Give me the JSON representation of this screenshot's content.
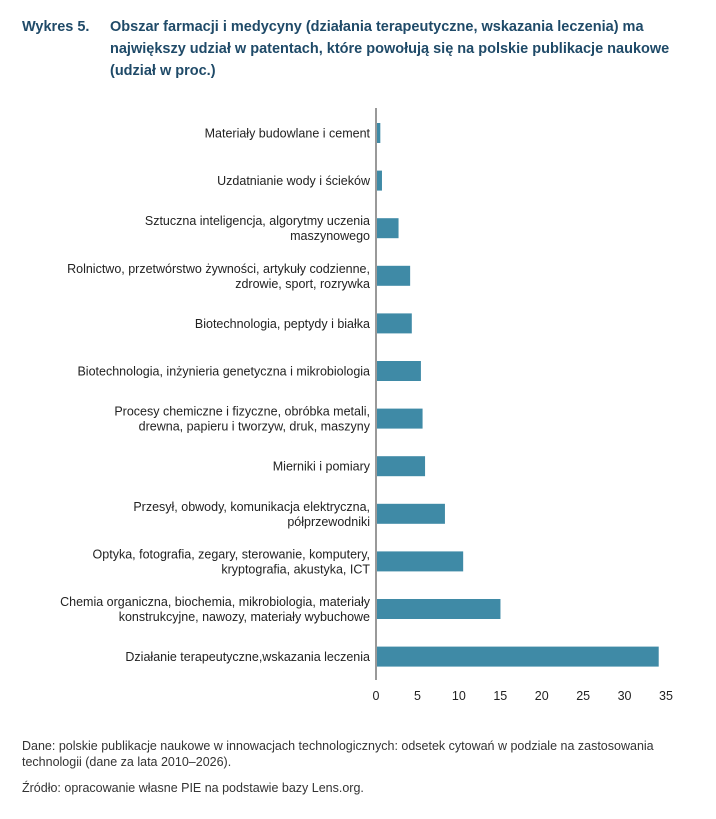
{
  "title": {
    "prefix": "Wykres 5.",
    "text": "Obszar farmacji i medycyny (działania terapeutyczne, wskazania leczenia) ma największy udział w patentach, które powołują się na polskie publikacje naukowe (udział w proc.)"
  },
  "notes": {
    "data_note": "Dane: polskie publikacje naukowe w innowacjach technologicznych: odsetek cytowań w podziale na zastosowania technologii (dane za lata 2010–2026).",
    "source": "Źródło: opracowanie własne PIE na podstawie bazy Lens.org."
  },
  "chart_data": {
    "type": "bar",
    "orientation": "horizontal",
    "title": "Obszar farmacji i medycyny (działania terapeutyczne, wskazania leczenia) ma największy udział w patentach, które powołują się na polskie publikacje naukowe (udział w proc.)",
    "xlabel": "",
    "ylabel": "",
    "xlim": [
      0,
      35
    ],
    "xticks": [
      0,
      5,
      10,
      15,
      20,
      25,
      30,
      35
    ],
    "grid": false,
    "color": "#3f8aa6",
    "categories": [
      [
        "Materiały budowlane i cement"
      ],
      [
        "Uzdatnianie wody i ścieków"
      ],
      [
        "Sztuczna inteligencja, algorytmy uczenia",
        "maszynowego"
      ],
      [
        "Rolnictwo, przetwórstwo żywności, artykuły codzienne,",
        "zdrowie, sport, rozrywka"
      ],
      [
        "Biotechnologia, peptydy i białka"
      ],
      [
        "Biotechnologia, inżynieria genetyczna i mikrobiologia"
      ],
      [
        "Procesy chemiczne i fizyczne, obróbka metali,",
        "drewna, papieru i tworzyw, druk, maszyny"
      ],
      [
        "Mierniki i pomiary"
      ],
      [
        "Przesył, obwody, komunikacja elektryczna,",
        "półprzewodniki"
      ],
      [
        "Optyka, fotografia, zegary, sterowanie, komputery,",
        "kryptografia, akustyka, ICT"
      ],
      [
        "Chemia organiczna, biochemia, mikrobiologia, materiały",
        "konstrukcyjne, nawozy, materiały wybuchowe"
      ],
      [
        "Działanie terapeutyczne,wskazania leczenia"
      ]
    ],
    "values": [
      0.4,
      0.6,
      2.6,
      4.0,
      4.2,
      5.3,
      5.5,
      5.8,
      8.2,
      10.4,
      14.9,
      34.0
    ]
  }
}
